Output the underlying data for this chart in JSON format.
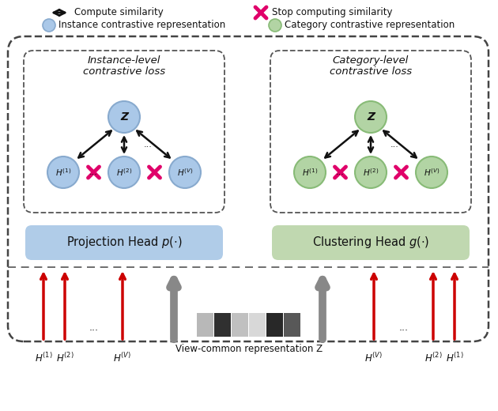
{
  "bg_color": "#ffffff",
  "left_node_color": "#aac8e8",
  "right_node_color": "#b2d4a4",
  "left_node_edge": "#88aace",
  "right_node_edge": "#88bb77",
  "proj_box_color": "#b0cce8",
  "clust_box_color": "#c0d8b0",
  "x_color": "#e0006a",
  "red_arrow_color": "#cc0000",
  "gray_arrow_color": "#888888",
  "dark_color": "#111111",
  "title_left_line1": "Instance-level",
  "title_left_line2": "contrastive loss",
  "title_right_line1": "Category-level",
  "title_right_line2": "contrastive loss",
  "proj_head_label": "Projection Head $p(\\cdot)$",
  "clust_head_label": "Clustering Head $g(\\cdot)$",
  "bottom_label": "View-common representation Z",
  "legend_arrow_label": "Compute similarity",
  "legend_x_label": "Stop computing similarity",
  "legend_blue_label": "Instance contrastive representation",
  "legend_green_label": "Category contrastive representation",
  "sq_colors": [
    "#b0b0b0",
    "#333333",
    "#c8c8c8",
    "#e0e0e0",
    "#222222",
    "#555555"
  ],
  "sq_widths": [
    22,
    22,
    22,
    22,
    22,
    22
  ]
}
